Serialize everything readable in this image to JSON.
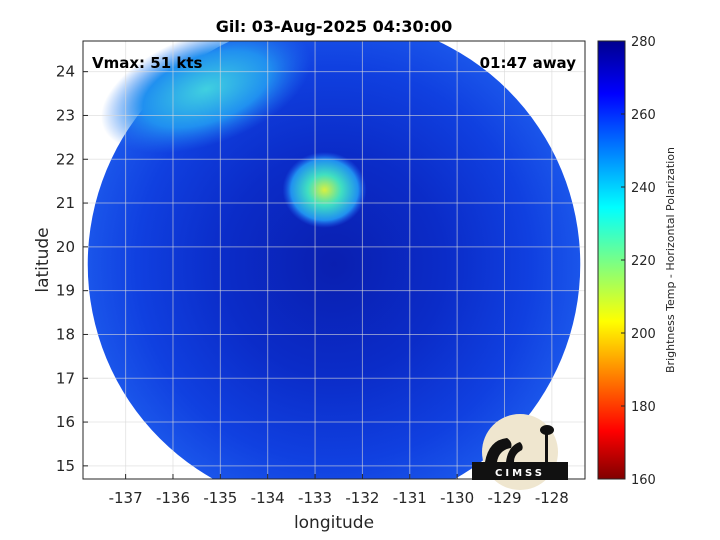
{
  "title": "Gil: 03-Aug-2025 04:30:00",
  "vmax_label": "Vmax: 51 kts",
  "time_label": "01:47 away",
  "xlabel": "longitude",
  "ylabel": "latitude",
  "colorbar_label": "Brightness Temp - Horizontal Polarization",
  "logo_text": "CIMSS",
  "colors": {
    "background": "#ffffff",
    "frame": "#262626",
    "grid": "#d9d9d9",
    "colormap": "jet"
  },
  "chart_data": {
    "type": "heatmap",
    "xlim": [
      -137.9,
      -127.3
    ],
    "ylim": [
      14.7,
      24.7
    ],
    "x_ticks": [
      -137,
      -136,
      -135,
      -134,
      -133,
      -132,
      -131,
      -130,
      -129,
      -128
    ],
    "y_ticks": [
      15,
      16,
      17,
      18,
      19,
      20,
      21,
      22,
      23,
      24
    ],
    "grid": true,
    "colorbar": {
      "range": [
        160,
        280
      ],
      "ticks": [
        160,
        180,
        200,
        220,
        240,
        260,
        280
      ],
      "position": "right"
    },
    "swath": {
      "center_lon": -132.6,
      "center_lat": 19.6,
      "radius_deg": 5.2
    },
    "features": [
      {
        "name": "warm-patch-north",
        "lon": -132.8,
        "lat": 21.3,
        "value": 228
      },
      {
        "name": "warm-band-northwest",
        "lon": -135.3,
        "lat": 23.6,
        "value": 240
      },
      {
        "name": "eye-center",
        "lon": -132.9,
        "lat": 18.5,
        "value": 262
      }
    ]
  }
}
